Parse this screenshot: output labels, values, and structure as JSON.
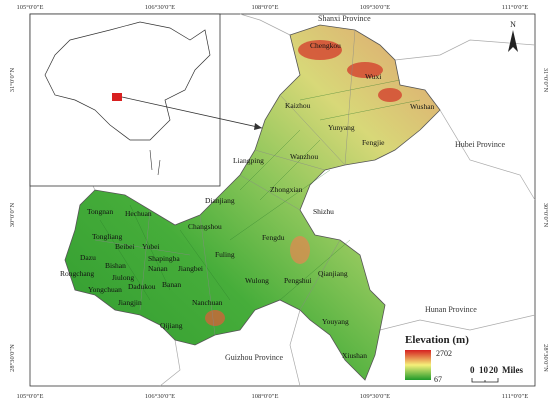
{
  "axes": {
    "top": [
      "105°0′0″E",
      "106°30′0″E",
      "108°0′0″E",
      "109°30′0″E",
      "111°0′0″E"
    ],
    "bottom": [
      "105°0′0″E",
      "106°30′0″E",
      "108°0′0″E",
      "109°30′0″E",
      "111°0′0″E"
    ],
    "left": [
      "31°0′0″N",
      "30°0′0″N",
      "28°30′0″N"
    ],
    "right": [
      "31°0′0″N",
      "30°0′0″N",
      "28°30′0″N"
    ]
  },
  "provinces": [
    "Shanxi Province",
    "Hubei Province",
    "Hunan Province",
    "Guizhou Province"
  ],
  "counties": [
    "Chengkou",
    "Wuxi",
    "Wushan",
    "Kaizhou",
    "Yunyang",
    "Fengjie",
    "Liangping",
    "Wanzhou",
    "Zhongxian",
    "Dianjiang",
    "Shizhu",
    "Changshou",
    "Fengdu",
    "Tongnan",
    "Hechuan",
    "Tongliang",
    "Beibei",
    "Yubei",
    "Dazu",
    "Bishan",
    "Shapingba",
    "Jiulong",
    "Nanan",
    "Jiangbei",
    "Fuling",
    "Rongchang",
    "Dadukou",
    "Yongchuan",
    "Banan",
    "Wulong",
    "Pengshui",
    "Qianjiang",
    "Jiangjin",
    "Nanchuan",
    "Qijiang",
    "Youyang",
    "Xiushan"
  ],
  "legend": {
    "title": "Elevation (m)",
    "max": 2702,
    "min": 67
  },
  "scale_bar": {
    "labels": [
      0,
      10,
      20
    ],
    "unit": "Miles"
  },
  "north": "N"
}
